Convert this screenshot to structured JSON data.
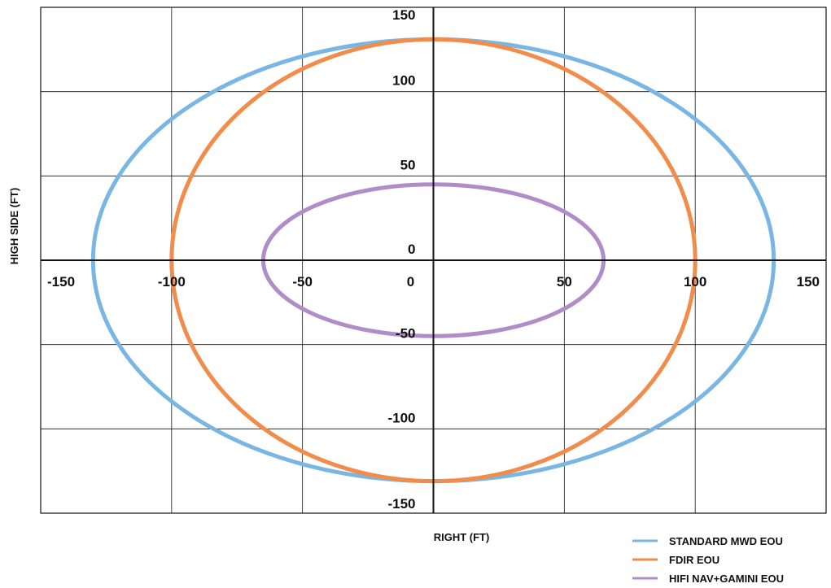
{
  "chart_data": {
    "type": "line",
    "xlabel": "RIGHT (FT)",
    "ylabel": "HIGH SIDE (FT)",
    "xlim": [
      -150,
      150
    ],
    "ylim": [
      -150,
      150
    ],
    "xticks": [
      -150,
      -100,
      -50,
      0,
      50,
      100,
      150
    ],
    "yticks": [
      150,
      100,
      50,
      0,
      -50,
      -100,
      -150
    ],
    "x_tick_labels": [
      "-150",
      "-100",
      "-50",
      "0",
      "50",
      "100",
      "150"
    ],
    "y_tick_labels": [
      "150",
      "100",
      "50",
      "0",
      "-50",
      "-100",
      "-150"
    ],
    "grid": true,
    "legend_position": "bottom-right",
    "series": [
      {
        "name": "STANDARD MWD EOU",
        "color": "#7ab6e3",
        "shape": "ellipse",
        "center": [
          0,
          0
        ],
        "x_radius": 130,
        "y_radius": 131
      },
      {
        "name": "FDIR EOU",
        "color": "#f28c4b",
        "shape": "ellipse",
        "center": [
          0,
          0
        ],
        "x_radius": 100,
        "y_radius": 131
      },
      {
        "name": "HIFI NAV+GAMINI EOU",
        "color": "#b08cc8",
        "shape": "ellipse",
        "center": [
          0,
          0
        ],
        "x_radius": 65,
        "y_radius": 45
      }
    ]
  }
}
